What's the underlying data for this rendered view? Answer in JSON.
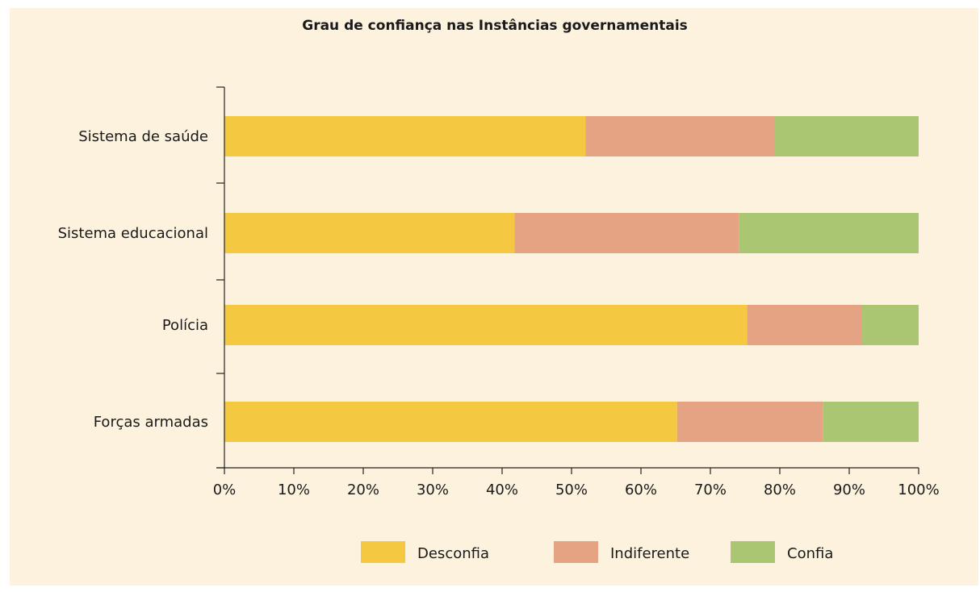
{
  "chart_data": {
    "type": "bar",
    "orientation": "horizontal",
    "stacked": true,
    "title": "Grau de confiança nas Instâncias governamentais",
    "categories": [
      "Sistema de saúde",
      "Sistema educacional",
      "Polícia",
      "Forças armadas"
    ],
    "series": [
      {
        "name": "Desconfia",
        "color": "#f5c842",
        "values": [
          52,
          41.8,
          75.3,
          65.2
        ]
      },
      {
        "name": "Indiferente",
        "color": "#e5a383",
        "values": [
          27.3,
          32.3,
          16.5,
          21
        ]
      },
      {
        "name": "Confia",
        "color": "#aac672",
        "values": [
          20.7,
          25.9,
          8.2,
          13.8
        ]
      }
    ],
    "xlim": [
      0,
      100
    ],
    "xticks": [
      "0%",
      "10%",
      "20%",
      "30%",
      "40%",
      "50%",
      "60%",
      "70%",
      "80%",
      "90%",
      "100%"
    ],
    "xlabel": "",
    "ylabel": "",
    "grid": false,
    "legend_position": "bottom"
  }
}
